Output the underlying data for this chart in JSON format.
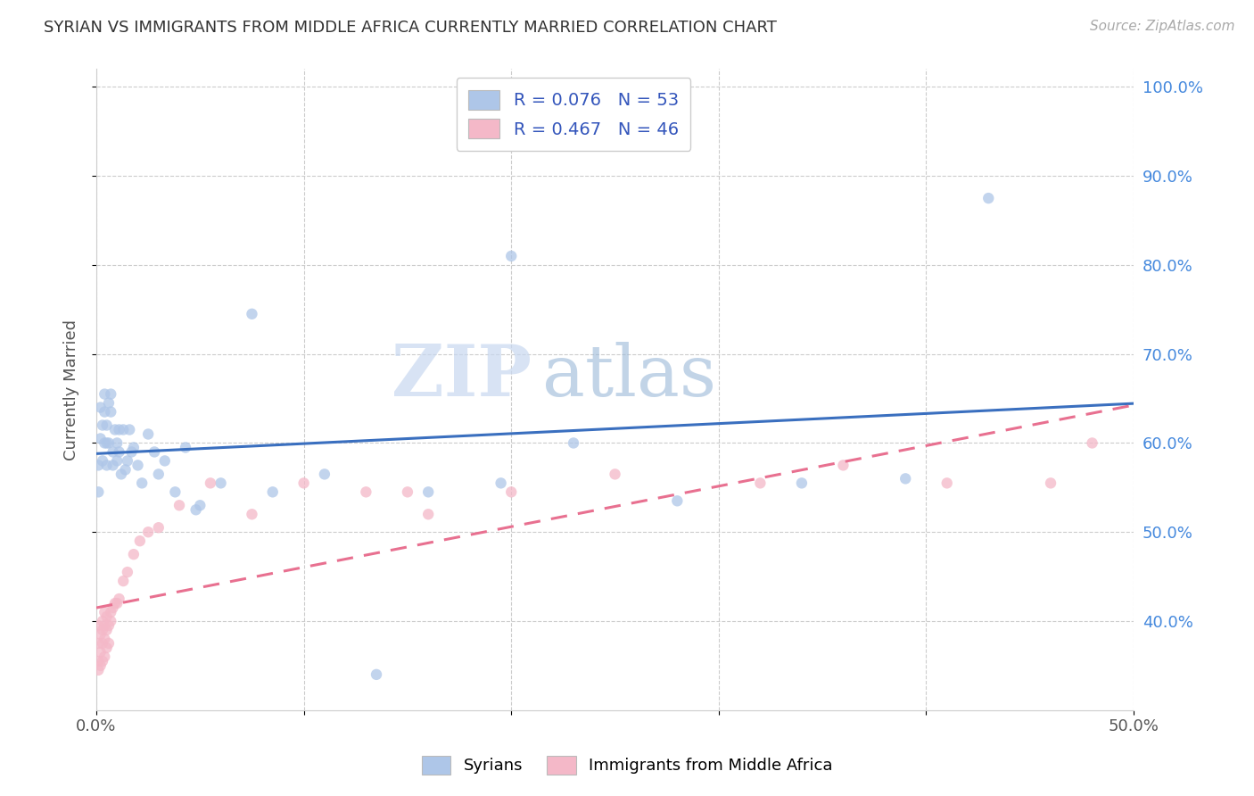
{
  "title": "SYRIAN VS IMMIGRANTS FROM MIDDLE AFRICA CURRENTLY MARRIED CORRELATION CHART",
  "source": "Source: ZipAtlas.com",
  "ylabel": "Currently Married",
  "xlim": [
    0.0,
    0.5
  ],
  "ylim": [
    0.3,
    1.02
  ],
  "yticks": [
    0.4,
    0.5,
    0.6,
    0.7,
    0.8,
    0.9,
    1.0
  ],
  "xticks": [
    0.0,
    0.1,
    0.2,
    0.3,
    0.4,
    0.5
  ],
  "xtick_labels": [
    "0.0%",
    "",
    "",
    "",
    "",
    "50.0%"
  ],
  "ytick_labels": [
    "40.0%",
    "50.0%",
    "60.0%",
    "70.0%",
    "80.0%",
    "90.0%",
    "100.0%"
  ],
  "color_syrian": "#aec6e8",
  "color_mid_africa": "#f4b8c8",
  "line_color_syrian": "#3a6fbf",
  "line_color_mid_africa": "#e87090",
  "background_color": "#ffffff",
  "legend_label_syrian": "Syrians",
  "legend_label_mid_africa": "Immigrants from Middle Africa",
  "watermark_zip": "ZIP",
  "watermark_atlas": "atlas",
  "syrian_x": [
    0.001,
    0.001,
    0.002,
    0.002,
    0.003,
    0.003,
    0.004,
    0.004,
    0.004,
    0.005,
    0.005,
    0.005,
    0.006,
    0.006,
    0.007,
    0.007,
    0.008,
    0.008,
    0.009,
    0.01,
    0.01,
    0.011,
    0.011,
    0.012,
    0.013,
    0.014,
    0.015,
    0.016,
    0.017,
    0.018,
    0.02,
    0.022,
    0.025,
    0.028,
    0.03,
    0.033,
    0.038,
    0.043,
    0.048,
    0.06,
    0.075,
    0.085,
    0.11,
    0.135,
    0.16,
    0.195,
    0.23,
    0.28,
    0.34,
    0.39,
    0.2,
    0.43,
    0.05
  ],
  "syrian_y": [
    0.545,
    0.575,
    0.605,
    0.64,
    0.62,
    0.58,
    0.6,
    0.635,
    0.655,
    0.6,
    0.575,
    0.62,
    0.6,
    0.645,
    0.635,
    0.655,
    0.575,
    0.59,
    0.615,
    0.6,
    0.58,
    0.59,
    0.615,
    0.565,
    0.615,
    0.57,
    0.58,
    0.615,
    0.59,
    0.595,
    0.575,
    0.555,
    0.61,
    0.59,
    0.565,
    0.58,
    0.545,
    0.595,
    0.525,
    0.555,
    0.745,
    0.545,
    0.565,
    0.34,
    0.545,
    0.555,
    0.6,
    0.535,
    0.555,
    0.56,
    0.81,
    0.875,
    0.53
  ],
  "mid_africa_x": [
    0.001,
    0.001,
    0.001,
    0.001,
    0.002,
    0.002,
    0.002,
    0.003,
    0.003,
    0.003,
    0.003,
    0.004,
    0.004,
    0.004,
    0.004,
    0.005,
    0.005,
    0.005,
    0.006,
    0.006,
    0.007,
    0.007,
    0.008,
    0.009,
    0.01,
    0.011,
    0.013,
    0.015,
    0.018,
    0.021,
    0.025,
    0.03,
    0.04,
    0.055,
    0.075,
    0.1,
    0.13,
    0.16,
    0.2,
    0.25,
    0.32,
    0.36,
    0.41,
    0.46,
    0.48,
    0.15
  ],
  "mid_africa_y": [
    0.345,
    0.355,
    0.375,
    0.395,
    0.35,
    0.365,
    0.385,
    0.355,
    0.375,
    0.39,
    0.4,
    0.36,
    0.38,
    0.395,
    0.41,
    0.37,
    0.39,
    0.405,
    0.375,
    0.395,
    0.4,
    0.41,
    0.415,
    0.42,
    0.42,
    0.425,
    0.445,
    0.455,
    0.475,
    0.49,
    0.5,
    0.505,
    0.53,
    0.555,
    0.52,
    0.555,
    0.545,
    0.52,
    0.545,
    0.565,
    0.555,
    0.575,
    0.555,
    0.555,
    0.6,
    0.545
  ]
}
